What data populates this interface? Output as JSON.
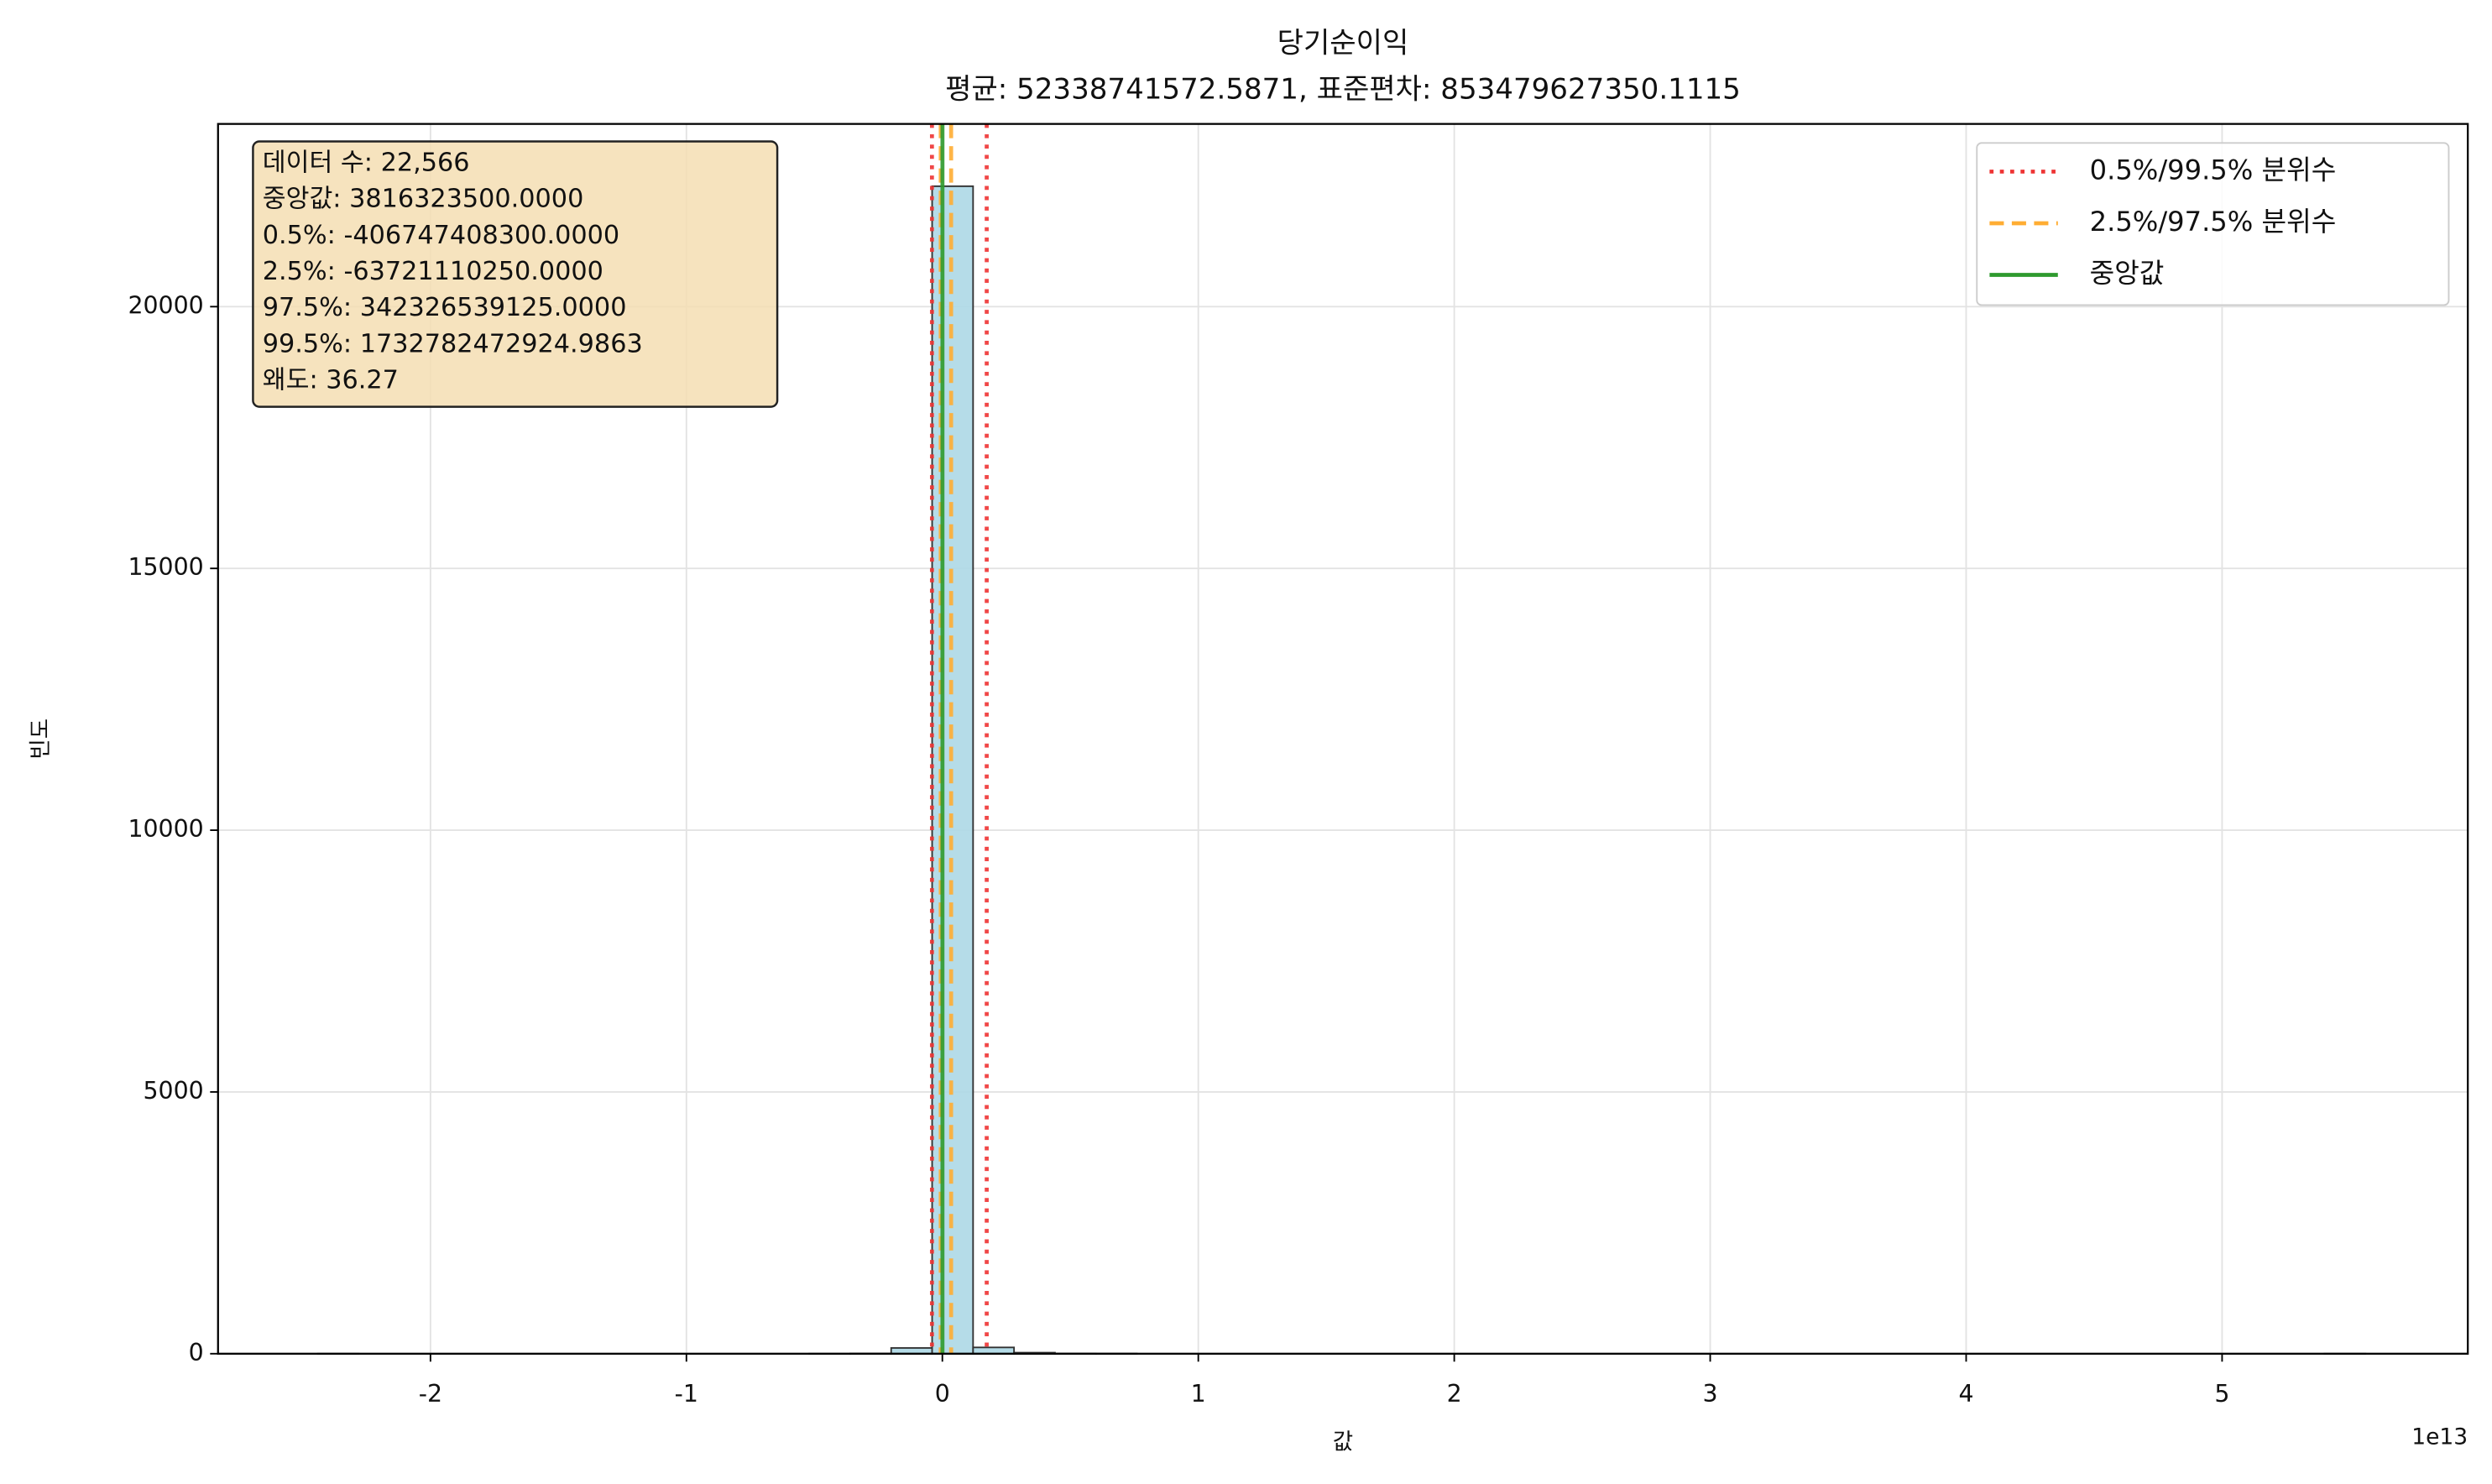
{
  "chart_data": {
    "type": "histogram",
    "title": "당기순이익",
    "subtitle": "평균: 52338741572.5871, 표준편차: 853479627350.1115",
    "x_label": "값",
    "y_label": "빈도",
    "x_offset_label": "1e13",
    "bins": [
      -24400000000000,
      -22800000000000,
      -21200000000000,
      -19600000000000,
      -18000000000000,
      -16400000000000,
      -14800000000000,
      -13200000000000,
      -11600000000000,
      -10000000000000,
      -8400000000000,
      -6800000000000,
      -5200000000000,
      -3600000000000,
      -2000000000000,
      -400000000000,
      1200000000000,
      2800000000000,
      4400000000000,
      6000000000000,
      7600000000000,
      9200000000000,
      10800000000000,
      12400000000000,
      14000000000000,
      15600000000000,
      17200000000000,
      18800000000000,
      20400000000000,
      22000000000000,
      23600000000000,
      25200000000000,
      26800000000000,
      28400000000000,
      30000000000000,
      31600000000000,
      33200000000000,
      34800000000000,
      36400000000000,
      38000000000000,
      39600000000000,
      41200000000000,
      42800000000000,
      44400000000000,
      46000000000000,
      47600000000000,
      49200000000000,
      50800000000000,
      52400000000000,
      54000000000000,
      55600000000000
    ],
    "values": [
      1,
      0,
      0,
      0,
      0,
      0,
      0,
      0,
      0,
      0,
      0,
      0,
      1,
      5,
      110,
      22300,
      120,
      20,
      5,
      3,
      0,
      0,
      0,
      0,
      0,
      0,
      0,
      0,
      0,
      0,
      0,
      0,
      0,
      0,
      0,
      0,
      0,
      0,
      0,
      0,
      0,
      0,
      0,
      0,
      0,
      0,
      0,
      0,
      0,
      1
    ],
    "color": "#add8e6",
    "edge_color": "#333333",
    "xlim": [
      -28300000000000,
      59600000000000
    ],
    "xticks": [
      {
        "value": -20000000000000,
        "label": "-2"
      },
      {
        "value": -10000000000000,
        "label": "-1"
      },
      0,
      {
        "value": 10000000000000,
        "label": "1"
      },
      {
        "value": 20000000000000,
        "label": "2"
      },
      {
        "value": 30000000000000,
        "label": "3"
      },
      {
        "value": 40000000000000,
        "label": "4"
      },
      {
        "value": 50000000000000,
        "label": "5"
      }
    ],
    "ylim": [
      0,
      23490
    ],
    "yticks": [
      0,
      5000,
      10000,
      15000,
      20000
    ],
    "grid": true,
    "legend": "upper right",
    "vlines": [
      {
        "name": "0.5%/99.5% 분위수",
        "color": "#ee3333",
        "style": "dotted",
        "values": [
          -406747408300,
          1732782472924.9863
        ]
      },
      {
        "name": "2.5%/97.5% 분위수",
        "color": "#ffad33",
        "style": "dashed",
        "values": [
          -63721110250,
          342326539125
        ]
      },
      {
        "name": "중앙값",
        "color": "#2e9a2e",
        "style": "solid",
        "values": [
          3816323500
        ]
      }
    ],
    "annotation": [
      "데이터 수: 22,566",
      "중앙값: 3816323500.0000",
      "0.5%: -406747408300.0000",
      "2.5%: -63721110250.0000",
      "97.5%: 342326539125.0000",
      "99.5%: 1732782472924.9863",
      "왜도: 36.27"
    ]
  }
}
